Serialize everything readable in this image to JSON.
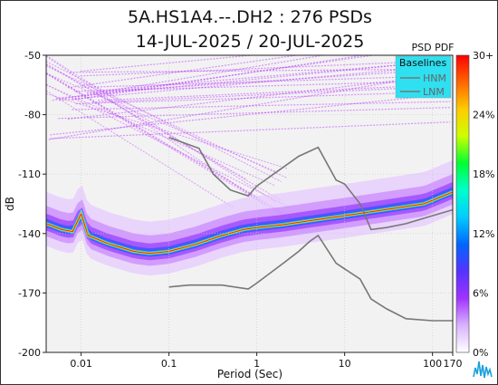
{
  "chart_data": {
    "type": "heatmap",
    "title": "5A.HS1A4.--.DH2 : 276 PSDs",
    "subtitle": "14-JUL-2025 / 20-JUL-2025",
    "xlabel": "Period (Sec)",
    "ylabel": "dB",
    "x_scale": "log",
    "xlim": [
      0.004,
      170
    ],
    "ylim": [
      -200,
      -50
    ],
    "x_ticks": [
      "0.01",
      "0.1",
      "1",
      "10",
      "100",
      "170"
    ],
    "y_ticks": [
      "-50",
      "-80",
      "-110",
      "-140",
      "-170",
      "-200"
    ],
    "grid": true,
    "colorbar": {
      "label": "PSD PDF",
      "ticks": [
        "30+",
        "24%",
        "18%",
        "12%",
        "6%",
        "0%"
      ],
      "stops": [
        "#ffffff",
        "#d9b3ff",
        "#a033ff",
        "#5533ff",
        "#0066ff",
        "#00ccff",
        "#00ffcc",
        "#00ff33",
        "#ccff00",
        "#ffcc00",
        "#ff6600",
        "#ff0000"
      ]
    },
    "legend": {
      "title": "Baselines",
      "items": [
        "HNM",
        "LNM"
      ],
      "placement": "top-right"
    },
    "series": [
      {
        "name": "HNM",
        "x": [
          0.1,
          0.22,
          0.32,
          0.5,
          0.8,
          1,
          3,
          5,
          8,
          10,
          15,
          20,
          30,
          50,
          100,
          170
        ],
        "y": [
          -91.5,
          -97,
          -110,
          -118,
          -121,
          -116,
          -101,
          -96.5,
          -113,
          -115,
          -125,
          -138,
          -137,
          -135,
          -131,
          -128
        ]
      },
      {
        "name": "LNM",
        "x": [
          0.1,
          0.17,
          0.4,
          0.8,
          1,
          2,
          3,
          4,
          5,
          8,
          15,
          20,
          30,
          50,
          100,
          170
        ],
        "y": [
          -167,
          -166,
          -166,
          -168,
          -165,
          -155,
          -149,
          -144,
          -141,
          -155,
          -163,
          -173,
          -178,
          -183,
          -184,
          -184
        ]
      },
      {
        "name": "dominant PDF mode",
        "x": [
          0.004,
          0.006,
          0.008,
          0.01,
          0.012,
          0.02,
          0.04,
          0.06,
          0.1,
          0.2,
          0.4,
          0.7,
          1,
          2,
          4,
          10,
          20,
          40,
          80,
          170
        ],
        "y": [
          -135,
          -138,
          -139,
          -130,
          -141,
          -145,
          -149,
          -150,
          -149,
          -145.5,
          -141,
          -138,
          -137,
          -135.5,
          -133.5,
          -131,
          -129,
          -127,
          -125,
          -119
        ]
      }
    ]
  }
}
